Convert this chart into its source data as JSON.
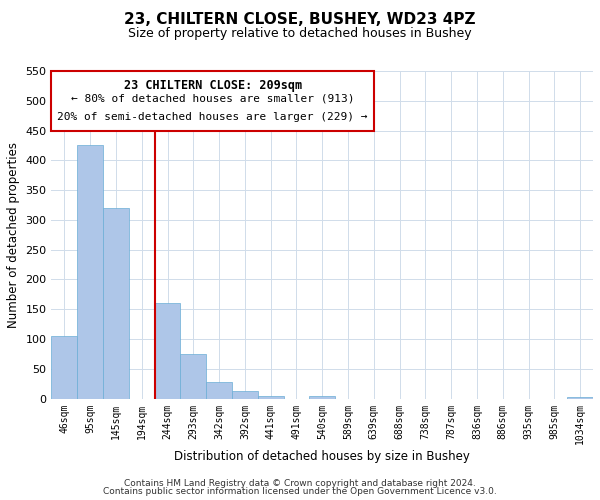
{
  "title": "23, CHILTERN CLOSE, BUSHEY, WD23 4PZ",
  "subtitle": "Size of property relative to detached houses in Bushey",
  "xlabel": "Distribution of detached houses by size in Bushey",
  "ylabel": "Number of detached properties",
  "footer_line1": "Contains HM Land Registry data © Crown copyright and database right 2024.",
  "footer_line2": "Contains public sector information licensed under the Open Government Licence v3.0.",
  "annotation_line1": "23 CHILTERN CLOSE: 209sqm",
  "annotation_line2": "← 80% of detached houses are smaller (913)",
  "annotation_line3": "20% of semi-detached houses are larger (229) →",
  "bin_labels": [
    "46sqm",
    "95sqm",
    "145sqm",
    "194sqm",
    "244sqm",
    "293sqm",
    "342sqm",
    "392sqm",
    "441sqm",
    "491sqm",
    "540sqm",
    "589sqm",
    "639sqm",
    "688sqm",
    "738sqm",
    "787sqm",
    "836sqm",
    "886sqm",
    "935sqm",
    "985sqm",
    "1034sqm"
  ],
  "bar_values": [
    105,
    425,
    320,
    0,
    160,
    75,
    27,
    13,
    5,
    0,
    4,
    0,
    0,
    0,
    0,
    0,
    0,
    0,
    0,
    0,
    3
  ],
  "bar_color": "#aec6e8",
  "bar_edgecolor": "#6aaed6",
  "vline_color": "#cc0000",
  "annotation_box_color": "#cc0000",
  "ylim": [
    0,
    550
  ],
  "yticks": [
    0,
    50,
    100,
    150,
    200,
    250,
    300,
    350,
    400,
    450,
    500,
    550
  ],
  "background_color": "#ffffff",
  "grid_color": "#d0dcea"
}
